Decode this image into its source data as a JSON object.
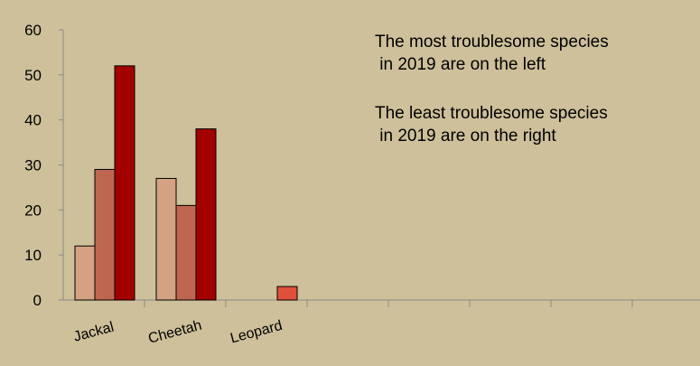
{
  "chart_data": {
    "type": "bar",
    "categories": [
      "Jackal",
      "Cheetah",
      "Leopard",
      "",
      "",
      "",
      "",
      ""
    ],
    "series": [
      {
        "values": [
          12,
          27,
          0,
          0,
          0,
          0,
          0,
          0
        ],
        "color": "#d4a282"
      },
      {
        "values": [
          29,
          21,
          0,
          0,
          0,
          0,
          0,
          0
        ],
        "color": "#bf6650"
      },
      {
        "values": [
          52,
          38,
          3,
          0,
          0,
          0,
          0,
          0
        ],
        "color": "#a30000"
      }
    ],
    "special_colors": {
      "leopard_third": "#e1503a"
    },
    "ylim": [
      0,
      60
    ],
    "yticks": [
      0,
      10,
      20,
      30,
      40,
      50,
      60
    ],
    "title": "",
    "xlabel": "",
    "ylabel": "",
    "grid": false,
    "annotations": [
      {
        "lines": [
          "The most troublesome species",
          " in 2019 are on the left"
        ]
      },
      {
        "lines": [
          "The least troublesome species",
          " in 2019 are on the right"
        ]
      }
    ]
  },
  "colors": {
    "background": "#cdc09a",
    "axis": "#8a8a8a",
    "bar_outline": "#000000"
  }
}
